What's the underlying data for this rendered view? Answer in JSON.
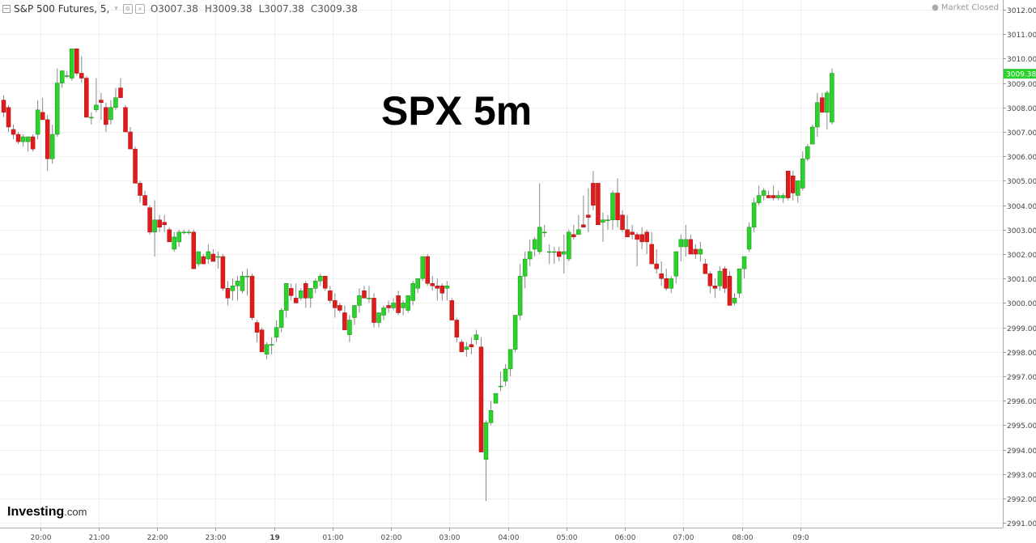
{
  "header": {
    "symbol_label": "S&P 500 Futures, 5,",
    "arrow": "▾",
    "o_key": "O",
    "o_val": "3007.38",
    "h_key": "H",
    "h_val": "3009.38",
    "l_key": "L",
    "l_val": "3007.38",
    "c_key": "C",
    "c_val": "3009.38"
  },
  "status": {
    "dot": "●",
    "text": "Market Closed"
  },
  "overlay_title": "SPX 5m",
  "logo": {
    "brand": "Investing",
    "suffix": ".com"
  },
  "colors": {
    "up": "#2bd22b",
    "down": "#e01b1b",
    "grid": "#eeeeee",
    "wick": "#888888",
    "last_price_bg": "#2bd22b"
  },
  "chart_data": {
    "type": "candlestick",
    "title": "SPX 5m",
    "ylim": [
      2990.7,
      3012.3
    ],
    "y_ticks": [
      "3012.00",
      "3011.00",
      "3010.00",
      "3009.00",
      "3008.00",
      "3007.00",
      "3006.00",
      "3005.00",
      "3004.00",
      "3003.00",
      "3002.00",
      "3001.00",
      "3000.00",
      "2999.00",
      "2998.00",
      "2997.00",
      "2996.00",
      "2995.00",
      "2994.00",
      "2993.00",
      "2992.00",
      "2991.00"
    ],
    "x_ticks": [
      {
        "label": "20:00",
        "index": 7.5
      },
      {
        "label": "21:00",
        "index": 19.5
      },
      {
        "label": "22:00",
        "index": 31.5
      },
      {
        "label": "23:00",
        "index": 43.5
      },
      {
        "label": "19",
        "index": 55.5
      },
      {
        "label": "01:00",
        "index": 67.5
      },
      {
        "label": "02:00",
        "index": 79.5
      },
      {
        "label": "03:00",
        "index": 91.5
      },
      {
        "label": "04:00",
        "index": 103.5
      },
      {
        "label": "05:00",
        "index": 115.5
      },
      {
        "label": "06:00",
        "index": 127.5
      },
      {
        "label": "07:00",
        "index": 139.5
      },
      {
        "label": "08:00",
        "index": 151.5
      },
      {
        "label": "09:0",
        "index": 163.5
      }
    ],
    "last_price": "3009.38",
    "candles": [
      [
        3008.3,
        3008.5,
        3007.6,
        3007.8
      ],
      [
        3008.0,
        3008.1,
        3007.0,
        3007.2
      ],
      [
        3007.1,
        3007.3,
        3006.7,
        3006.9
      ],
      [
        3006.9,
        3007.0,
        3006.5,
        3006.6
      ],
      [
        3006.6,
        3006.9,
        3006.4,
        3006.8
      ],
      [
        3006.6,
        3006.8,
        3006.2,
        3006.8
      ],
      [
        3006.8,
        3006.9,
        3006.2,
        3006.3
      ],
      [
        3006.9,
        3008.3,
        3006.7,
        3007.9
      ],
      [
        3007.8,
        3008.4,
        3007.5,
        3007.5
      ],
      [
        3007.5,
        3007.7,
        3005.4,
        3005.9
      ],
      [
        3005.9,
        3007.3,
        3005.7,
        3006.9
      ],
      [
        3006.9,
        3009.6,
        3006.8,
        3009.0
      ],
      [
        3009.0,
        3009.5,
        3008.8,
        3009.5
      ],
      [
        3009.3,
        3009.5,
        3009.2,
        3009.3
      ],
      [
        3009.2,
        3010.4,
        3009.1,
        3010.4
      ],
      [
        3010.4,
        3010.4,
        3009.3,
        3009.4
      ],
      [
        3009.4,
        3010.1,
        3009.0,
        3009.2
      ],
      [
        3009.2,
        3009.3,
        3007.6,
        3007.6
      ],
      [
        3007.6,
        3007.8,
        3007.3,
        3007.6
      ],
      [
        3007.9,
        3009.2,
        3007.8,
        3008.1
      ],
      [
        3008.3,
        3008.6,
        3007.5,
        3008.2
      ],
      [
        3008.0,
        3008.2,
        3007.0,
        3007.3
      ],
      [
        3007.5,
        3008.3,
        3007.3,
        3008.0
      ],
      [
        3008.0,
        3008.8,
        3007.9,
        3008.4
      ],
      [
        3008.8,
        3009.2,
        3008.4,
        3008.4
      ],
      [
        3008.0,
        3008.1,
        3007.0,
        3007.0
      ],
      [
        3007.0,
        3007.2,
        3006.3,
        3006.3
      ],
      [
        3006.3,
        3006.4,
        3004.9,
        3004.9
      ],
      [
        3004.9,
        3005.0,
        3004.1,
        3004.4
      ],
      [
        3004.4,
        3004.6,
        3004.1,
        3004.0
      ],
      [
        3003.9,
        3004.0,
        3002.8,
        3002.9
      ],
      [
        3002.9,
        3004.2,
        3001.9,
        3003.4
      ],
      [
        3003.4,
        3003.6,
        3002.9,
        3003.1
      ],
      [
        3003.3,
        3003.6,
        3002.9,
        3003.2
      ],
      [
        3003.0,
        3003.1,
        3002.5,
        3002.5
      ],
      [
        3002.2,
        3002.9,
        3002.1,
        3002.7
      ],
      [
        3002.5,
        3003.0,
        3002.3,
        3002.9
      ],
      [
        3002.9,
        3003.0,
        3002.8,
        3002.9
      ],
      [
        3002.9,
        3003.0,
        3002.8,
        3002.9
      ],
      [
        3002.9,
        3003.0,
        3001.4,
        3001.4
      ],
      [
        3001.6,
        3002.1,
        3001.5,
        3002.1
      ],
      [
        3001.9,
        3002.0,
        3001.6,
        3001.6
      ],
      [
        3001.8,
        3002.4,
        3001.6,
        3002.1
      ],
      [
        3002.0,
        3002.2,
        3001.7,
        3001.7
      ],
      [
        3001.9,
        3002.1,
        3001.4,
        3001.9
      ],
      [
        3001.9,
        3002.0,
        3000.5,
        3000.6
      ],
      [
        3000.6,
        3000.9,
        2999.9,
        3000.2
      ],
      [
        3000.5,
        3001.0,
        3000.1,
        3000.7
      ],
      [
        3000.7,
        3001.1,
        3000.1,
        3000.9
      ],
      [
        3000.5,
        3001.3,
        3000.4,
        3001.1
      ],
      [
        3001.1,
        3001.4,
        3000.3,
        3001.1
      ],
      [
        3001.1,
        3001.2,
        2999.3,
        2999.4
      ],
      [
        2999.2,
        2999.3,
        2998.4,
        2998.8
      ],
      [
        2998.9,
        2999.0,
        2998.0,
        2998.0
      ],
      [
        2997.9,
        2998.4,
        2997.7,
        2998.3
      ],
      [
        2998.3,
        2998.6,
        2997.9,
        2998.3
      ],
      [
        2998.6,
        2999.3,
        2998.4,
        2999.0
      ],
      [
        2999.0,
        2999.8,
        2998.8,
        2999.7
      ],
      [
        2999.7,
        3000.8,
        2999.4,
        3000.8
      ],
      [
        3000.6,
        3000.8,
        3000.1,
        3000.3
      ],
      [
        3000.2,
        3000.8,
        3000.0,
        3000.0
      ],
      [
        3000.2,
        3000.6,
        3000.1,
        3000.5
      ],
      [
        3000.8,
        3000.9,
        2999.8,
        3000.2
      ],
      [
        3000.2,
        3000.6,
        2999.8,
        3000.6
      ],
      [
        3000.6,
        3001.0,
        3000.4,
        3000.9
      ],
      [
        3000.9,
        3001.2,
        3000.7,
        3001.1
      ],
      [
        3001.1,
        3001.1,
        3000.5,
        3000.6
      ],
      [
        3000.5,
        3000.7,
        3000.0,
        3000.1
      ],
      [
        3000.1,
        3000.4,
        2999.4,
        2999.8
      ],
      [
        2999.9,
        3000.0,
        2999.6,
        2999.7
      ],
      [
        2999.6,
        2999.9,
        2998.9,
        2998.9
      ],
      [
        2998.7,
        2999.5,
        2998.4,
        2999.3
      ],
      [
        2999.4,
        2999.9,
        2999.1,
        2999.9
      ],
      [
        2999.9,
        3000.6,
        2999.6,
        3000.3
      ],
      [
        3000.5,
        3000.7,
        3000.2,
        3000.2
      ],
      [
        3000.2,
        3000.7,
        3000.0,
        3000.2
      ],
      [
        3000.2,
        3000.4,
        2999.0,
        2999.2
      ],
      [
        2999.2,
        2999.6,
        2999.0,
        2999.6
      ],
      [
        2999.5,
        2999.9,
        2999.3,
        2999.8
      ],
      [
        2999.9,
        3000.1,
        2999.6,
        2999.8
      ],
      [
        2999.8,
        3000.2,
        2999.7,
        3000.0
      ],
      [
        3000.3,
        3000.5,
        2999.5,
        2999.6
      ],
      [
        2999.8,
        3000.1,
        2999.5,
        3000.0
      ],
      [
        2999.7,
        3000.2,
        2999.6,
        3000.3
      ],
      [
        3000.1,
        3000.9,
        2999.9,
        3000.8
      ],
      [
        3000.6,
        3001.0,
        3000.4,
        3001.0
      ],
      [
        3001.0,
        3001.9,
        3000.9,
        3001.9
      ],
      [
        3001.9,
        3002.0,
        3000.7,
        3000.8
      ],
      [
        3000.8,
        3001.1,
        3000.5,
        3000.7
      ],
      [
        3000.7,
        3001.0,
        3000.1,
        3000.6
      ],
      [
        3000.7,
        3000.8,
        3000.1,
        3000.4
      ],
      [
        3000.6,
        3000.9,
        3000.1,
        3000.7
      ],
      [
        3000.1,
        3000.2,
        2999.3,
        2999.3
      ],
      [
        2999.3,
        2999.4,
        2998.4,
        2998.6
      ],
      [
        2998.4,
        2998.5,
        2998.0,
        2998.0
      ],
      [
        2998.1,
        2998.4,
        2997.8,
        2998.2
      ],
      [
        2998.3,
        2998.6,
        2997.9,
        2998.2
      ],
      [
        2998.5,
        2998.9,
        2998.3,
        2998.7
      ],
      [
        2998.2,
        2998.6,
        2994.0,
        2993.9
      ],
      [
        2993.6,
        2995.2,
        2991.9,
        2995.1
      ],
      [
        2995.1,
        2996.0,
        2995.0,
        2995.6
      ],
      [
        2995.9,
        2996.3,
        2995.9,
        2996.3
      ],
      [
        2996.6,
        2997.2,
        2996.4,
        2996.6
      ],
      [
        2996.8,
        2997.5,
        2996.6,
        2997.3
      ],
      [
        2997.3,
        2998.0,
        2997.0,
        2998.1
      ],
      [
        2998.1,
        2999.5,
        2998.0,
        2999.5
      ],
      [
        2999.5,
        3001.6,
        2999.3,
        3001.1
      ],
      [
        3001.1,
        3002.1,
        3000.6,
        3001.8
      ],
      [
        3001.8,
        3002.6,
        3001.5,
        3002.1
      ],
      [
        3002.2,
        3002.7,
        3001.9,
        3002.6
      ],
      [
        3002.1,
        3004.9,
        3002.0,
        3003.1
      ],
      [
        3002.9,
        3003.2,
        3002.7,
        3002.9
      ],
      [
        3002.1,
        3002.4,
        3001.6,
        3002.1
      ],
      [
        3002.1,
        3002.3,
        3001.6,
        3002.1
      ],
      [
        3002.1,
        3002.3,
        3001.7,
        3001.9
      ],
      [
        3002.0,
        3002.8,
        3001.2,
        3002.1
      ],
      [
        3001.8,
        3003.0,
        3001.7,
        3002.9
      ],
      [
        3002.8,
        3003.2,
        3002.6,
        3002.7
      ],
      [
        3002.8,
        3003.6,
        3002.8,
        3003.0
      ],
      [
        3003.2,
        3004.4,
        3003.1,
        3003.1
      ],
      [
        3003.6,
        3004.7,
        3002.9,
        3003.5
      ],
      [
        3004.9,
        3005.4,
        3003.8,
        3004.0
      ],
      [
        3004.9,
        3004.9,
        3003.2,
        3003.2
      ],
      [
        3003.3,
        3003.7,
        3002.5,
        3003.4
      ],
      [
        3003.4,
        3003.6,
        3003.0,
        3003.4
      ],
      [
        3003.4,
        3004.6,
        3003.0,
        3004.5
      ],
      [
        3004.5,
        3005.1,
        3003.1,
        3003.4
      ],
      [
        3003.6,
        3003.8,
        3002.9,
        3003.0
      ],
      [
        3003.0,
        3003.6,
        3002.7,
        3002.7
      ],
      [
        3002.9,
        3003.2,
        3002.6,
        3002.8
      ],
      [
        3002.8,
        3002.9,
        3001.5,
        3002.6
      ],
      [
        3002.8,
        3003.1,
        3002.2,
        3002.5
      ],
      [
        3002.9,
        3003.0,
        3002.0,
        3002.5
      ],
      [
        3002.4,
        3002.9,
        3001.6,
        3001.6
      ],
      [
        3001.6,
        3002.2,
        3001.2,
        3001.4
      ],
      [
        3001.2,
        3001.7,
        3000.7,
        3001.0
      ],
      [
        3001.0,
        3001.4,
        3000.5,
        3000.6
      ],
      [
        3000.6,
        3001.1,
        3000.4,
        3001.0
      ],
      [
        3001.1,
        3002.1,
        3000.8,
        3002.1
      ],
      [
        3002.3,
        3002.8,
        3001.7,
        3002.6
      ],
      [
        3002.3,
        3003.2,
        3001.9,
        3002.6
      ],
      [
        3002.6,
        3002.8,
        3002.0,
        3002.0
      ],
      [
        3002.2,
        3002.4,
        3001.8,
        3002.0
      ],
      [
        3002.0,
        3002.5,
        3001.7,
        3002.2
      ],
      [
        3001.6,
        3001.8,
        3001.2,
        3001.2
      ],
      [
        3001.2,
        3001.3,
        3000.4,
        3000.7
      ],
      [
        3000.7,
        3001.0,
        3000.2,
        3000.6
      ],
      [
        3000.7,
        3001.5,
        3000.5,
        3001.3
      ],
      [
        3001.4,
        3001.5,
        3000.4,
        3000.6
      ],
      [
        3001.1,
        3001.3,
        2999.9,
        2999.9
      ],
      [
        3000.0,
        3000.4,
        2999.9,
        3000.2
      ],
      [
        3000.4,
        3001.4,
        3000.2,
        3001.4
      ],
      [
        3001.4,
        3001.9,
        3001.0,
        3001.9
      ],
      [
        3002.2,
        3003.3,
        3002.1,
        3003.1
      ],
      [
        3003.1,
        3004.3,
        3002.9,
        3004.1
      ],
      [
        3004.1,
        3004.8,
        3004.0,
        3004.4
      ],
      [
        3004.4,
        3004.7,
        3004.2,
        3004.6
      ],
      [
        3004.4,
        3004.6,
        3004.3,
        3004.3
      ],
      [
        3004.4,
        3004.8,
        3004.2,
        3004.3
      ],
      [
        3004.3,
        3004.6,
        3004.2,
        3004.4
      ],
      [
        3004.3,
        3004.5,
        3004.1,
        3004.4
      ],
      [
        3005.4,
        3005.4,
        3004.2,
        3004.3
      ],
      [
        3005.2,
        3005.4,
        3004.2,
        3004.5
      ],
      [
        3004.4,
        3004.8,
        3004.1,
        3005.0
      ],
      [
        3004.7,
        3006.2,
        3004.6,
        3005.9
      ],
      [
        3005.9,
        3006.5,
        3005.8,
        3006.4
      ],
      [
        3006.5,
        3007.3,
        3006.5,
        3007.2
      ],
      [
        3007.2,
        3008.6,
        3006.8,
        3008.2
      ],
      [
        3008.4,
        3008.6,
        3007.8,
        3007.8
      ],
      [
        3007.8,
        3008.7,
        3007.1,
        3008.6
      ],
      [
        3007.4,
        3009.6,
        3007.3,
        3009.4
      ]
    ]
  }
}
